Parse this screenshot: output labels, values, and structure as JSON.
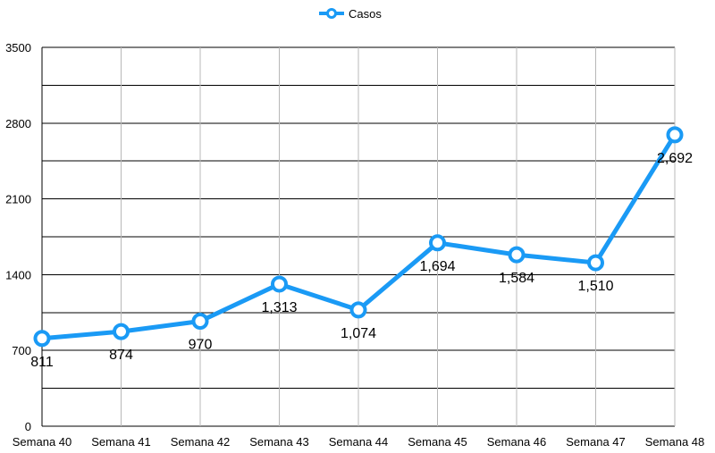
{
  "chart_data": {
    "type": "line",
    "title": "",
    "xlabel": "",
    "ylabel": "",
    "categories": [
      "Semana 40",
      "Semana 41",
      "Semana 42",
      "Semana 43",
      "Semana 44",
      "Semana 45",
      "Semana 46",
      "Semana 47",
      "Semana 48"
    ],
    "series": [
      {
        "name": "Casos",
        "values": [
          811,
          874,
          970,
          1313,
          1074,
          1694,
          1584,
          1510,
          2692
        ]
      }
    ],
    "data_labels": [
      "811",
      "874",
      "970",
      "1,313",
      "1,074",
      "1,694",
      "1,584",
      "1,510",
      "2,692"
    ],
    "ylim": [
      0,
      3500
    ],
    "yticks": [
      0,
      700,
      1400,
      2100,
      2800,
      3500
    ],
    "ytick_labels": [
      "0",
      "700",
      "1400",
      "2100",
      "2800",
      "3500"
    ],
    "grid": true,
    "legend_position": "top-center",
    "colors": {
      "series": "#1a9af5",
      "grid": "#000000"
    }
  }
}
